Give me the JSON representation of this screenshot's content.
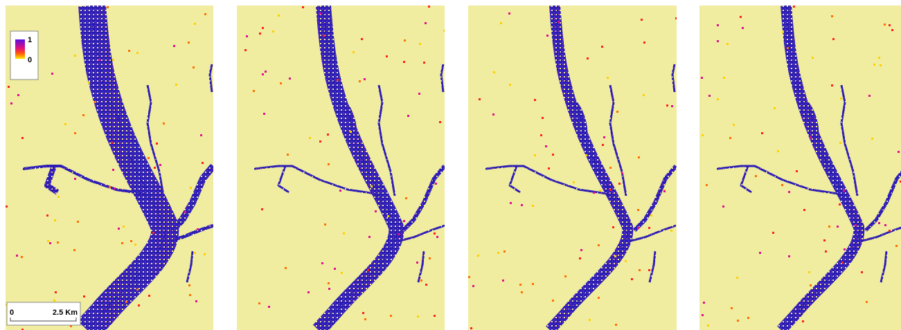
{
  "legend": {
    "max_label": "1",
    "min_label": "0"
  },
  "scale_bar": {
    "start_label": "0",
    "end_label": "2.5 Km"
  }
}
